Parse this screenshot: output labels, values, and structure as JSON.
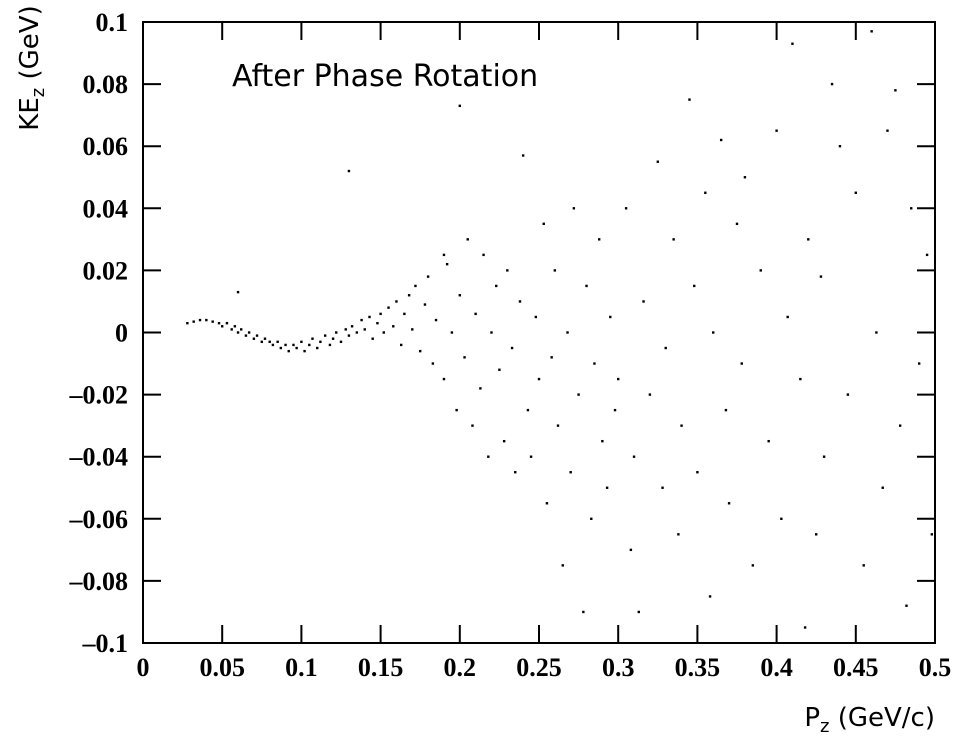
{
  "chart_data": {
    "type": "scatter",
    "annotation": "After Phase Rotation",
    "xlabel_parts": [
      "P",
      "z",
      " (GeV/c)"
    ],
    "ylabel_parts": [
      "KE",
      "z",
      " (GeV)"
    ],
    "xlim": [
      0,
      0.5
    ],
    "ylim": [
      -0.1,
      0.1
    ],
    "xticks": [
      0,
      0.05,
      0.1,
      0.15,
      0.2,
      0.25,
      0.3,
      0.35,
      0.4,
      0.45,
      0.5
    ],
    "yticks": [
      {
        "value": -0.1,
        "label": "–0.1"
      },
      {
        "value": -0.08,
        "label": "–0.08"
      },
      {
        "value": -0.06,
        "label": "–0.06"
      },
      {
        "value": -0.04,
        "label": "–0.04"
      },
      {
        "value": -0.02,
        "label": "–0.02"
      },
      0,
      0.02,
      0.04,
      0.06,
      0.08,
      0.1
    ],
    "color": "#000000",
    "grid": false,
    "x": [
      0.028,
      0.032,
      0.036,
      0.04,
      0.044,
      0.048,
      0.05,
      0.053,
      0.056,
      0.058,
      0.06,
      0.062,
      0.065,
      0.067,
      0.07,
      0.072,
      0.075,
      0.077,
      0.08,
      0.082,
      0.085,
      0.087,
      0.09,
      0.092,
      0.095,
      0.097,
      0.1,
      0.102,
      0.105,
      0.107,
      0.11,
      0.112,
      0.115,
      0.118,
      0.12,
      0.122,
      0.125,
      0.128,
      0.13,
      0.132,
      0.135,
      0.138,
      0.14,
      0.143,
      0.145,
      0.148,
      0.15,
      0.152,
      0.155,
      0.158,
      0.16,
      0.163,
      0.165,
      0.168,
      0.17,
      0.172,
      0.175,
      0.178,
      0.18,
      0.183,
      0.185,
      0.19,
      0.192,
      0.195,
      0.198,
      0.2,
      0.203,
      0.205,
      0.208,
      0.21,
      0.213,
      0.215,
      0.218,
      0.22,
      0.223,
      0.225,
      0.228,
      0.23,
      0.233,
      0.235,
      0.238,
      0.24,
      0.243,
      0.245,
      0.248,
      0.25,
      0.253,
      0.255,
      0.258,
      0.26,
      0.262,
      0.265,
      0.268,
      0.27,
      0.272,
      0.275,
      0.278,
      0.28,
      0.283,
      0.285,
      0.288,
      0.29,
      0.293,
      0.295,
      0.298,
      0.3,
      0.305,
      0.308,
      0.31,
      0.313,
      0.316,
      0.32,
      0.325,
      0.328,
      0.33,
      0.335,
      0.338,
      0.34,
      0.345,
      0.348,
      0.35,
      0.355,
      0.358,
      0.36,
      0.365,
      0.368,
      0.37,
      0.375,
      0.378,
      0.38,
      0.385,
      0.39,
      0.395,
      0.4,
      0.403,
      0.407,
      0.41,
      0.415,
      0.418,
      0.42,
      0.425,
      0.428,
      0.43,
      0.435,
      0.44,
      0.445,
      0.45,
      0.455,
      0.46,
      0.463,
      0.467,
      0.47,
      0.475,
      0.478,
      0.482,
      0.485,
      0.49,
      0.495,
      0.498,
      0.06,
      0.2,
      0.13,
      0.19
    ],
    "values": [
      0.003,
      0.0035,
      0.004,
      0.004,
      0.0035,
      0.003,
      0.002,
      0.003,
      0.001,
      0.002,
      0.0,
      0.001,
      -0.001,
      0.0,
      -0.002,
      -0.001,
      -0.003,
      -0.002,
      -0.003,
      -0.004,
      -0.003,
      -0.005,
      -0.004,
      -0.006,
      -0.004,
      -0.005,
      -0.003,
      -0.006,
      -0.004,
      -0.002,
      -0.005,
      -0.003,
      -0.001,
      -0.004,
      -0.002,
      0.0,
      -0.003,
      0.001,
      -0.001,
      0.002,
      0.0,
      0.004,
      0.001,
      0.005,
      -0.002,
      0.003,
      0.006,
      0.0,
      0.008,
      0.002,
      0.01,
      -0.004,
      0.006,
      0.012,
      0.001,
      0.015,
      -0.006,
      0.009,
      0.018,
      -0.01,
      0.004,
      -0.015,
      0.022,
      0.0,
      -0.025,
      0.012,
      -0.008,
      0.03,
      -0.03,
      0.006,
      -0.018,
      0.025,
      -0.04,
      0.0,
      0.015,
      -0.012,
      -0.035,
      0.02,
      -0.005,
      -0.045,
      0.01,
      0.057,
      -0.025,
      -0.04,
      0.005,
      -0.015,
      0.035,
      -0.055,
      -0.008,
      0.02,
      -0.03,
      -0.075,
      0.0,
      -0.045,
      0.04,
      -0.02,
      -0.09,
      0.015,
      -0.06,
      -0.01,
      0.03,
      -0.035,
      -0.05,
      0.005,
      -0.025,
      -0.015,
      0.04,
      -0.07,
      -0.04,
      -0.09,
      0.01,
      -0.02,
      0.055,
      -0.05,
      -0.005,
      0.03,
      -0.065,
      -0.03,
      0.075,
      0.015,
      -0.045,
      0.045,
      -0.085,
      0.0,
      0.062,
      -0.025,
      -0.055,
      0.035,
      -0.01,
      0.05,
      -0.075,
      0.02,
      -0.035,
      0.065,
      -0.06,
      0.005,
      0.093,
      -0.015,
      -0.095,
      0.03,
      -0.065,
      0.018,
      -0.04,
      0.08,
      0.06,
      -0.02,
      0.045,
      -0.075,
      0.097,
      0.0,
      -0.05,
      0.065,
      0.078,
      -0.03,
      -0.088,
      0.04,
      -0.01,
      0.025,
      -0.065,
      0.013,
      0.073,
      0.052,
      0.025
    ]
  }
}
